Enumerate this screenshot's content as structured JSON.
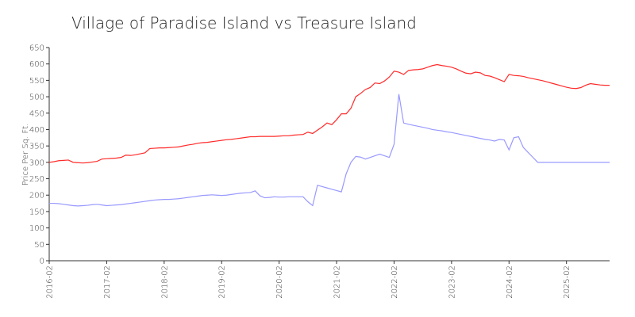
{
  "chart_data": {
    "type": "line",
    "title": "Village of Paradise Island vs Treasure Island",
    "y_label": "Price Per Sq. Ft.",
    "x": [
      "2016-02",
      "2016-03",
      "2016-04",
      "2016-05",
      "2016-06",
      "2016-07",
      "2016-08",
      "2016-09",
      "2016-10",
      "2016-11",
      "2016-12",
      "2017-01",
      "2017-02",
      "2017-03",
      "2017-04",
      "2017-05",
      "2017-06",
      "2017-07",
      "2017-08",
      "2017-09",
      "2017-10",
      "2017-11",
      "2017-12",
      "2018-01",
      "2018-02",
      "2018-03",
      "2018-04",
      "2018-05",
      "2018-06",
      "2018-07",
      "2018-08",
      "2018-09",
      "2018-10",
      "2018-11",
      "2018-12",
      "2019-01",
      "2019-02",
      "2019-03",
      "2019-04",
      "2019-05",
      "2019-06",
      "2019-07",
      "2019-08",
      "2019-09",
      "2019-10",
      "2019-11",
      "2019-12",
      "2020-01",
      "2020-02",
      "2020-03",
      "2020-04",
      "2020-05",
      "2020-06",
      "2020-07",
      "2020-08",
      "2020-09",
      "2020-10",
      "2020-11",
      "2020-12",
      "2021-01",
      "2021-02",
      "2021-03",
      "2021-04",
      "2021-05",
      "2021-06",
      "2021-07",
      "2021-08",
      "2021-09",
      "2021-10",
      "2021-11",
      "2021-12",
      "2022-01",
      "2022-02",
      "2022-03",
      "2022-04",
      "2022-05",
      "2022-06",
      "2022-07",
      "2022-08",
      "2022-09",
      "2022-10",
      "2022-11",
      "2022-12",
      "2023-01",
      "2023-02",
      "2023-03",
      "2023-04",
      "2023-05",
      "2023-06",
      "2023-07",
      "2023-08",
      "2023-09",
      "2023-10",
      "2023-11",
      "2023-12",
      "2024-01",
      "2024-02",
      "2024-03",
      "2024-04",
      "2024-05",
      "2024-06",
      "2024-07",
      "2024-08",
      "2024-09",
      "2024-10",
      "2024-11",
      "2024-12",
      "2025-01",
      "2025-02",
      "2025-03",
      "2025-04",
      "2025-05",
      "2025-06",
      "2025-07",
      "2025-08",
      "2025-09",
      "2025-10",
      "2025-11"
    ],
    "xtick_every": 12,
    "series": [
      {
        "color": "#ff2a2a",
        "values": [
          300,
          302,
          305,
          306,
          307,
          300,
          299,
          298,
          299,
          301,
          303,
          310,
          311,
          312,
          313,
          315,
          322,
          321,
          323,
          326,
          329,
          342,
          343,
          344,
          344,
          345,
          346,
          347,
          350,
          353,
          355,
          358,
          360,
          361,
          363,
          365,
          367,
          369,
          370,
          372,
          374,
          376,
          378,
          378,
          379,
          379,
          379,
          379,
          380,
          381,
          381,
          383,
          384,
          385,
          392,
          388,
          398,
          408,
          420,
          415,
          430,
          448,
          448,
          465,
          500,
          510,
          522,
          528,
          542,
          540,
          548,
          560,
          578,
          575,
          568,
          580,
          582,
          583,
          585,
          590,
          595,
          598,
          595,
          593,
          590,
          585,
          578,
          572,
          570,
          575,
          573,
          565,
          563,
          558,
          552,
          546,
          568,
          565,
          564,
          562,
          558,
          555,
          552,
          549,
          545,
          541,
          537,
          533,
          529,
          526,
          525,
          528,
          535,
          540,
          538,
          536,
          535,
          535
        ]
      },
      {
        "color": "#9999ff",
        "values": [
          175,
          175,
          174,
          172,
          170,
          168,
          167,
          168,
          169,
          171,
          172,
          170,
          168,
          169,
          170,
          171,
          173,
          175,
          177,
          179,
          181,
          183,
          185,
          186,
          187,
          187,
          188,
          189,
          191,
          193,
          195,
          197,
          199,
          200,
          201,
          200,
          199,
          200,
          202,
          204,
          206,
          207,
          208,
          213,
          198,
          192,
          193,
          195,
          194,
          194,
          195,
          195,
          195,
          195,
          180,
          168,
          230,
          226,
          222,
          218,
          214,
          210,
          265,
          300,
          318,
          316,
          310,
          315,
          320,
          325,
          320,
          315,
          355,
          508,
          420,
          416,
          413,
          410,
          407,
          404,
          400,
          398,
          396,
          393,
          391,
          388,
          385,
          382,
          379,
          376,
          373,
          370,
          368,
          365,
          370,
          368,
          338,
          375,
          378,
          345,
          330,
          315,
          300,
          300,
          300,
          300,
          300,
          300,
          300,
          300,
          300,
          300,
          300,
          300,
          300,
          300,
          300,
          300
        ]
      }
    ],
    "ylim": [
      0,
      650
    ],
    "yticks": [
      0,
      50,
      100,
      150,
      200,
      250,
      300,
      350,
      400,
      450,
      500,
      550,
      600,
      650
    ]
  }
}
